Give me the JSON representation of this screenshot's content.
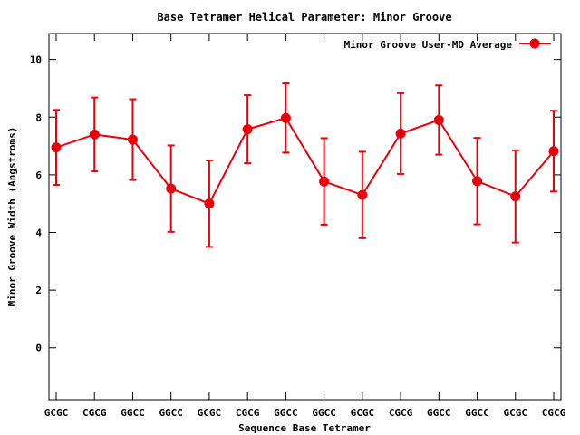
{
  "chart_data": {
    "type": "line",
    "title": "Base Tetramer Helical Parameter: Minor Groove",
    "xlabel": "Sequence Base Tetramer",
    "ylabel": "Minor Groove Width (Angstroms)",
    "ylim": [
      -1.8,
      10.9
    ],
    "yticks": [
      0,
      2,
      4,
      6,
      8,
      10
    ],
    "grid": false,
    "legend": "top-right",
    "categories": [
      "GCGC",
      "CGCG",
      "GGCC",
      "GGCC",
      "GCGC",
      "CGCG",
      "GGCC",
      "GGCC",
      "GCGC",
      "CGCG",
      "GGCC",
      "GGCC",
      "GCGC",
      "CGCG"
    ],
    "series": [
      {
        "name": "Minor Groove User-MD Average",
        "color": "#e8000b",
        "marker": "circle",
        "values": [
          6.95,
          7.4,
          7.22,
          5.52,
          5.0,
          7.58,
          7.97,
          5.77,
          5.3,
          7.43,
          7.9,
          5.78,
          5.25,
          6.82
        ],
        "error": [
          1.3,
          1.28,
          1.4,
          1.5,
          1.5,
          1.18,
          1.2,
          1.5,
          1.5,
          1.4,
          1.2,
          1.5,
          1.6,
          1.4
        ]
      }
    ]
  }
}
